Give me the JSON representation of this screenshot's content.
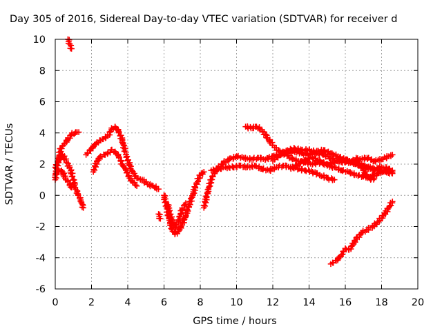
{
  "chart_data": {
    "type": "scatter",
    "title": "Day 305 of 2016, Sidereal Day-to-day VTEC variation (SDTVAR) for receiver d",
    "xlabel": "GPS time / hours",
    "ylabel": "SDTVAR / TECUs",
    "xlim": [
      0,
      20
    ],
    "ylim": [
      -6,
      10
    ],
    "xticks": [
      "0",
      "2",
      "4",
      "6",
      "8",
      "10",
      "12",
      "14",
      "16",
      "18",
      "20"
    ],
    "yticks": [
      "-6",
      "-4",
      "-2",
      "0",
      "2",
      "4",
      "6",
      "8",
      "10"
    ],
    "grid": true,
    "marker": "+",
    "colors": {
      "series": "#ff0000",
      "grid": "#a0a0a0",
      "axes": "#000000"
    },
    "series": [
      {
        "points": [
          [
            0.0,
            1.0
          ],
          [
            0.15,
            2.2
          ],
          [
            0.3,
            3.0
          ],
          [
            0.5,
            3.3
          ],
          [
            0.7,
            3.6
          ],
          [
            0.9,
            3.9
          ],
          [
            1.1,
            4.0
          ],
          [
            1.3,
            4.05
          ]
        ]
      },
      {
        "points": [
          [
            0.0,
            1.8
          ],
          [
            0.2,
            2.3
          ],
          [
            0.4,
            2.6
          ],
          [
            0.6,
            2.2
          ],
          [
            0.8,
            1.8
          ],
          [
            0.95,
            1.2
          ],
          [
            1.1,
            0.5
          ],
          [
            1.25,
            0.1
          ],
          [
            1.4,
            -0.3
          ],
          [
            1.55,
            -0.8
          ]
        ]
      },
      {
        "points": [
          [
            0.0,
            1.3
          ],
          [
            0.2,
            1.6
          ],
          [
            0.4,
            1.5
          ],
          [
            0.55,
            1.1
          ],
          [
            0.7,
            0.9
          ],
          [
            0.9,
            0.5
          ]
        ]
      },
      {
        "points": [
          [
            0.7,
            10.0
          ],
          [
            0.8,
            9.7
          ],
          [
            0.9,
            9.4
          ]
        ]
      },
      {
        "points": [
          [
            1.7,
            2.6
          ],
          [
            2.0,
            3.0
          ],
          [
            2.3,
            3.4
          ],
          [
            2.6,
            3.6
          ],
          [
            2.9,
            3.8
          ],
          [
            3.1,
            4.2
          ],
          [
            3.3,
            4.4
          ],
          [
            3.5,
            4.1
          ],
          [
            3.7,
            3.5
          ],
          [
            3.9,
            2.6
          ],
          [
            4.1,
            1.9
          ],
          [
            4.3,
            1.4
          ],
          [
            4.5,
            1.1
          ],
          [
            4.7,
            1.0
          ]
        ]
      },
      {
        "points": [
          [
            2.1,
            1.5
          ],
          [
            2.3,
            2.2
          ],
          [
            2.5,
            2.5
          ],
          [
            2.7,
            2.6
          ],
          [
            2.9,
            2.7
          ],
          [
            3.1,
            2.9
          ],
          [
            3.3,
            2.8
          ],
          [
            3.5,
            2.5
          ],
          [
            3.7,
            2.0
          ],
          [
            3.9,
            1.6
          ],
          [
            4.1,
            1.1
          ],
          [
            4.3,
            0.8
          ],
          [
            4.5,
            0.6
          ]
        ]
      },
      {
        "points": [
          [
            4.8,
            1.0
          ],
          [
            5.1,
            0.7
          ],
          [
            5.4,
            0.6
          ],
          [
            5.7,
            0.4
          ]
        ]
      },
      {
        "points": [
          [
            5.7,
            -1.2
          ],
          [
            5.8,
            -1.5
          ]
        ]
      },
      {
        "points": [
          [
            6.0,
            0.0
          ],
          [
            6.15,
            -0.8
          ],
          [
            6.3,
            -1.6
          ],
          [
            6.45,
            -2.2
          ],
          [
            6.6,
            -2.5
          ],
          [
            6.8,
            -2.3
          ],
          [
            7.0,
            -1.9
          ],
          [
            7.2,
            -1.3
          ],
          [
            7.4,
            -0.6
          ],
          [
            7.6,
            0.1
          ],
          [
            7.8,
            0.8
          ],
          [
            8.0,
            1.3
          ],
          [
            8.2,
            1.5
          ]
        ]
      },
      {
        "points": [
          [
            6.2,
            -0.6
          ],
          [
            6.4,
            -1.5
          ],
          [
            6.6,
            -2.1
          ],
          [
            6.8,
            -1.6
          ],
          [
            7.0,
            -0.9
          ],
          [
            7.2,
            -0.5
          ]
        ]
      },
      {
        "points": [
          [
            8.2,
            -0.8
          ],
          [
            8.4,
            0.2
          ],
          [
            8.6,
            1.0
          ],
          [
            8.8,
            1.5
          ],
          [
            9.0,
            1.8
          ],
          [
            9.3,
            2.1
          ],
          [
            9.6,
            2.3
          ],
          [
            10.0,
            2.5
          ],
          [
            10.4,
            2.4
          ],
          [
            10.8,
            2.3
          ],
          [
            11.2,
            2.4
          ],
          [
            11.6,
            2.3
          ],
          [
            12.0,
            2.5
          ],
          [
            12.4,
            2.6
          ],
          [
            12.8,
            2.7
          ],
          [
            13.2,
            2.8
          ],
          [
            13.6,
            2.7
          ],
          [
            14.0,
            2.6
          ],
          [
            14.4,
            2.7
          ],
          [
            14.8,
            2.6
          ],
          [
            15.2,
            2.4
          ],
          [
            15.6,
            2.2
          ],
          [
            16.0,
            2.1
          ],
          [
            16.4,
            2.2
          ],
          [
            16.8,
            2.3
          ],
          [
            17.2,
            2.4
          ],
          [
            17.6,
            2.2
          ],
          [
            18.0,
            2.3
          ],
          [
            18.4,
            2.5
          ],
          [
            18.6,
            2.6
          ]
        ]
      },
      {
        "points": [
          [
            8.6,
            1.6
          ],
          [
            9.0,
            1.7
          ],
          [
            9.4,
            1.8
          ],
          [
            9.8,
            1.8
          ],
          [
            10.2,
            1.9
          ],
          [
            10.6,
            1.8
          ],
          [
            11.0,
            1.9
          ],
          [
            11.4,
            1.7
          ],
          [
            11.8,
            1.6
          ],
          [
            12.2,
            1.8
          ],
          [
            12.6,
            1.9
          ],
          [
            13.0,
            1.8
          ],
          [
            13.4,
            1.7
          ],
          [
            13.8,
            1.6
          ],
          [
            14.2,
            1.5
          ],
          [
            14.6,
            1.3
          ],
          [
            15.0,
            1.1
          ],
          [
            15.4,
            1.0
          ]
        ]
      },
      {
        "points": [
          [
            10.5,
            4.4
          ],
          [
            10.8,
            4.3
          ],
          [
            11.1,
            4.4
          ],
          [
            11.4,
            4.2
          ],
          [
            11.7,
            3.7
          ],
          [
            12.0,
            3.2
          ],
          [
            12.3,
            2.9
          ],
          [
            12.6,
            2.7
          ],
          [
            13.0,
            2.4
          ],
          [
            13.4,
            2.2
          ],
          [
            13.8,
            2.1
          ],
          [
            14.2,
            2.0
          ],
          [
            14.6,
            2.1
          ],
          [
            15.0,
            2.0
          ],
          [
            15.4,
            2.1
          ],
          [
            15.8,
            2.3
          ],
          [
            16.2,
            2.2
          ],
          [
            16.6,
            2.0
          ],
          [
            17.0,
            1.9
          ],
          [
            17.4,
            1.7
          ],
          [
            17.8,
            1.6
          ],
          [
            18.2,
            1.5
          ],
          [
            18.6,
            1.4
          ]
        ]
      },
      {
        "points": [
          [
            12.0,
            2.2
          ],
          [
            12.4,
            2.6
          ],
          [
            12.8,
            2.9
          ],
          [
            13.2,
            3.0
          ],
          [
            13.6,
            2.9
          ],
          [
            14.0,
            2.9
          ],
          [
            14.4,
            2.8
          ],
          [
            14.8,
            2.9
          ],
          [
            15.2,
            2.7
          ],
          [
            15.6,
            2.5
          ],
          [
            16.0,
            2.3
          ],
          [
            16.4,
            2.1
          ],
          [
            16.8,
            1.9
          ],
          [
            17.2,
            1.8
          ],
          [
            17.6,
            1.7
          ],
          [
            18.0,
            1.8
          ],
          [
            18.4,
            1.7
          ],
          [
            18.6,
            1.6
          ]
        ]
      },
      {
        "points": [
          [
            13.0,
            1.7
          ],
          [
            13.4,
            2.0
          ],
          [
            13.8,
            2.3
          ],
          [
            14.2,
            2.4
          ],
          [
            14.6,
            2.2
          ],
          [
            15.0,
            1.9
          ],
          [
            15.4,
            1.8
          ],
          [
            15.8,
            1.6
          ],
          [
            16.2,
            1.5
          ],
          [
            16.6,
            1.3
          ],
          [
            17.0,
            1.2
          ],
          [
            17.4,
            1.2
          ],
          [
            17.8,
            1.4
          ],
          [
            18.2,
            1.6
          ],
          [
            18.6,
            1.5
          ]
        ]
      },
      {
        "points": [
          [
            16.6,
            2.4
          ],
          [
            16.8,
            2.0
          ],
          [
            17.0,
            1.6
          ],
          [
            17.2,
            1.2
          ],
          [
            17.4,
            1.0
          ],
          [
            17.6,
            1.1
          ]
        ]
      },
      {
        "points": [
          [
            15.2,
            -4.4
          ],
          [
            15.5,
            -4.2
          ],
          [
            15.8,
            -3.8
          ],
          [
            16.0,
            -3.4
          ],
          [
            16.2,
            -3.5
          ],
          [
            16.4,
            -3.2
          ],
          [
            16.6,
            -2.8
          ],
          [
            16.9,
            -2.4
          ],
          [
            17.2,
            -2.2
          ],
          [
            17.5,
            -2.0
          ],
          [
            17.8,
            -1.7
          ],
          [
            18.1,
            -1.3
          ],
          [
            18.4,
            -0.8
          ],
          [
            18.6,
            -0.4
          ]
        ]
      }
    ]
  }
}
